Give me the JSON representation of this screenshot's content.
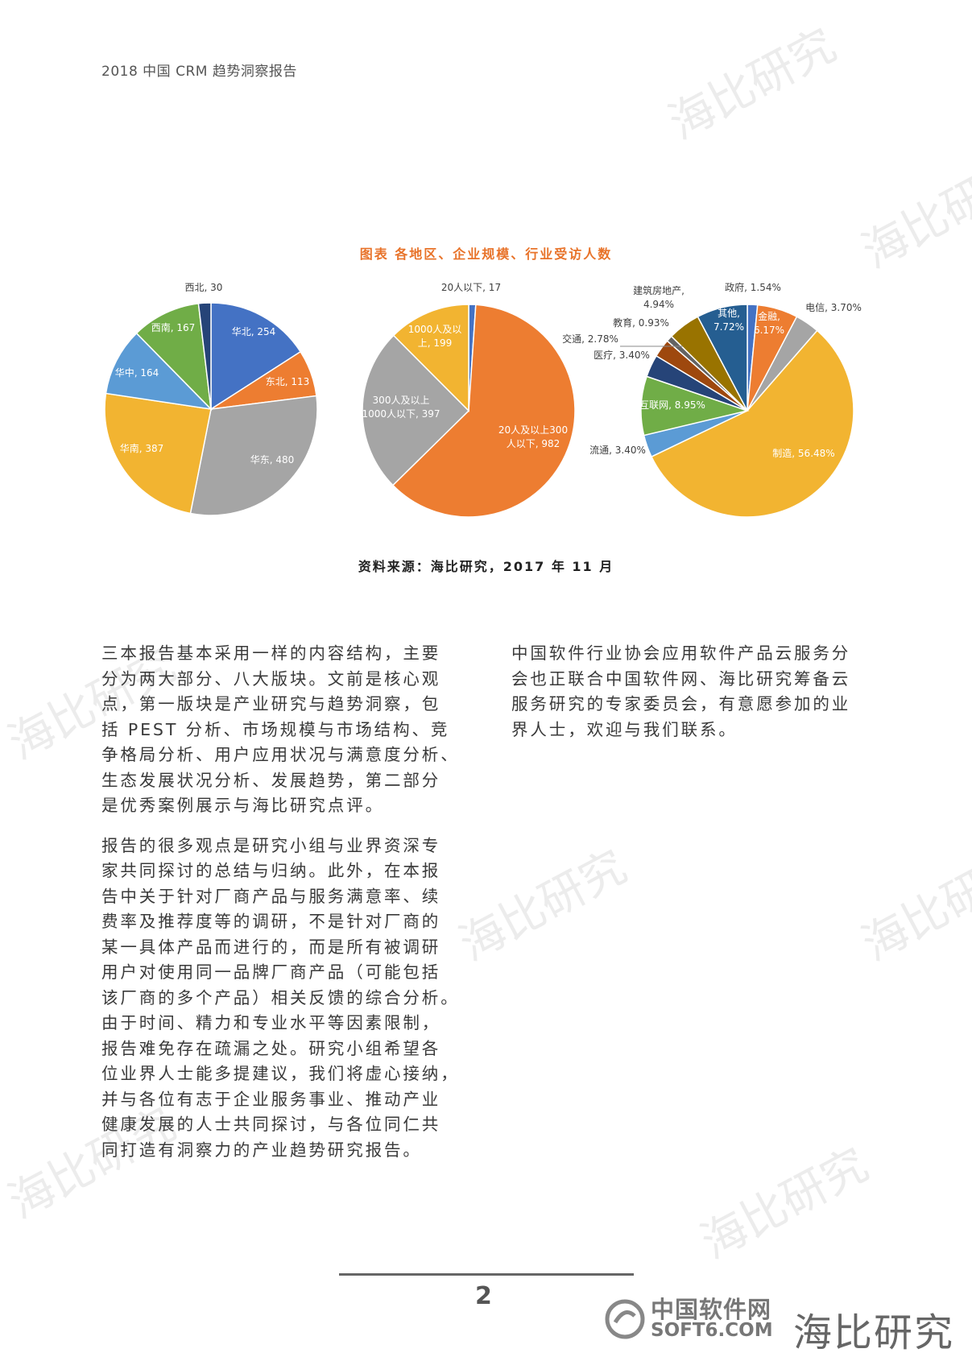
{
  "header": {
    "title": "2018 中国 CRM 趋势洞察报告"
  },
  "figure": {
    "title": "图表 各地区、企业规模、行业受访人数",
    "source": "资料来源：海比研究，2017 年 11 月"
  },
  "chart_data": [
    {
      "type": "pie",
      "title": "",
      "slices": [
        {
          "label": "华北, 254",
          "name": "华北",
          "value": 254,
          "color": "#4472c4"
        },
        {
          "label": "东北, 113",
          "name": "东北",
          "value": 113,
          "color": "#ed7d31"
        },
        {
          "label": "华东, 480",
          "name": "华东",
          "value": 480,
          "color": "#a5a5a5"
        },
        {
          "label": "华南, 387",
          "name": "华南",
          "value": 387,
          "color": "#f2b431"
        },
        {
          "label": "华中, 164",
          "name": "华中",
          "value": 164,
          "color": "#5b9bd5"
        },
        {
          "label": "西南, 167",
          "name": "西南",
          "value": 167,
          "color": "#70ad47"
        },
        {
          "label": "西北, 30",
          "name": "西北",
          "value": 30,
          "color": "#264478"
        }
      ]
    },
    {
      "type": "pie",
      "title": "",
      "slices": [
        {
          "label": "20人以下, 17",
          "name": "20人以下",
          "value": 17,
          "color": "#4472c4"
        },
        {
          "label": "20人及以上300|人以下, 982",
          "name": "20人及以上300人以下",
          "value": 982,
          "color": "#ed7d31"
        },
        {
          "label": "300人及以上|1000人以下, 397",
          "name": "300人及以上1000人以下",
          "value": 397,
          "color": "#a5a5a5"
        },
        {
          "label": "1000人及以|上, 199",
          "name": "1000人及以上",
          "value": 199,
          "color": "#f2b431"
        }
      ]
    },
    {
      "type": "pie",
      "title": "",
      "slices": [
        {
          "label": "政府, 1.54%",
          "name": "政府",
          "value": 1.54,
          "color": "#4472c4"
        },
        {
          "label": "金融,|6.17%",
          "name": "金融",
          "value": 6.17,
          "color": "#ed7d31"
        },
        {
          "label": "电信, 3.70%",
          "name": "电信",
          "value": 3.7,
          "color": "#a5a5a5"
        },
        {
          "label": "制造, 56.48%",
          "name": "制造",
          "value": 56.48,
          "color": "#f2b431"
        },
        {
          "label": "流通, 3.40%",
          "name": "流通",
          "value": 3.4,
          "color": "#5b9bd5"
        },
        {
          "label": "互联网, 8.95%",
          "name": "互联网",
          "value": 8.95,
          "color": "#70ad47"
        },
        {
          "label": "医疗, 3.40%",
          "name": "医疗",
          "value": 3.4,
          "color": "#264478"
        },
        {
          "label": "交通, 2.78%",
          "name": "交通",
          "value": 2.78,
          "color": "#9e480e"
        },
        {
          "label": "教育, 0.93%",
          "name": "教育",
          "value": 0.93,
          "color": "#636363"
        },
        {
          "label": "建筑房地产,|4.94%",
          "name": "建筑房地产",
          "value": 4.94,
          "color": "#997300"
        },
        {
          "label": "其他,|7.72%",
          "name": "其他",
          "value": 7.72,
          "color": "#255e91"
        }
      ]
    }
  ],
  "body": {
    "left_paragraphs": [
      [
        "三本报告基本采用一样的内容结构，主要",
        "分为两大部分、八大版块。文前是核心观",
        "点，第一版块是产业研究与趋势洞察，包",
        "括 PEST 分析、市场规模与市场结构、竞",
        "争格局分析、用户应用状况与满意度分析、",
        "生态发展状况分析、发展趋势，第二部分",
        "是优秀案例展示与海比研究点评。"
      ],
      [
        "报告的很多观点是研究小组与业界资深专",
        "家共同探讨的总结与归纳。此外，在本报",
        "告中关于针对厂商产品与服务满意率、续",
        "费率及推荐度等的调研，不是针对厂商的",
        "某一具体产品而进行的，而是所有被调研",
        "用户对使用同一品牌厂商产品（可能包括",
        "该厂商的多个产品）相关反馈的综合分析。",
        "由于时间、精力和专业水平等因素限制，",
        "报告难免存在疏漏之处。研究小组希望各",
        "位业界人士能多提建议，我们将虚心接纳，",
        "并与各位有志于企业服务事业、推动产业",
        "健康发展的人士共同探讨，与各位同仁共",
        "同打造有洞察力的产业趋势研究报告。"
      ]
    ],
    "right_paragraphs": [
      [
        "中国软件行业协会应用软件产品云服务分",
        "会也正联合中国软件网、海比研究筹备云",
        "服务研究的专家委员会，有意愿参加的业",
        "界人士，欢迎与我们联系。"
      ]
    ]
  },
  "footer": {
    "page_number": "2",
    "logo_cn": "中国软件网",
    "logo_en": "SOFT6.COM",
    "brand": "海比研究"
  },
  "watermarks": [
    "海比研究",
    "中国软件网 SOFT6.COM"
  ]
}
